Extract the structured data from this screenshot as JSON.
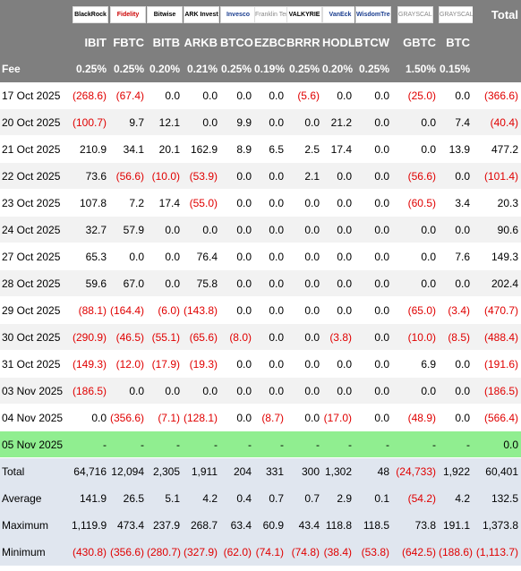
{
  "header": {
    "logos": [
      "BlackRock",
      "Fidelity",
      "Bitwise",
      "ARK Invest",
      "Invesco",
      "Franklin Templeton",
      "VALKYRIE",
      "VanEck",
      "WisdomTree",
      "GRAYSCALE",
      "GRAYSCALE"
    ],
    "total_label": "Total",
    "tickers": [
      "IBIT",
      "FBTC",
      "BITB",
      "ARKB",
      "BTCO",
      "EZBC",
      "BRRR",
      "HODL",
      "BTCW",
      "GBTC",
      "BTC"
    ]
  },
  "fee": {
    "label": "Fee",
    "values": [
      "0.25%",
      "0.25%",
      "0.20%",
      "0.21%",
      "0.25%",
      "0.19%",
      "0.25%",
      "0.20%",
      "0.25%",
      "1.50%",
      "0.15%"
    ]
  },
  "rows": [
    {
      "date": "17 Oct 2025",
      "cells": [
        "(268.6)",
        "(67.4)",
        "0.0",
        "0.0",
        "0.0",
        "0.0",
        "(5.6)",
        "0.0",
        "0.0",
        "(25.0)",
        "0.0",
        "(366.6)"
      ]
    },
    {
      "date": "20 Oct 2025",
      "cells": [
        "(100.7)",
        "9.7",
        "12.1",
        "0.0",
        "9.9",
        "0.0",
        "0.0",
        "21.2",
        "0.0",
        "0.0",
        "7.4",
        "(40.4)"
      ]
    },
    {
      "date": "21 Oct 2025",
      "cells": [
        "210.9",
        "34.1",
        "20.1",
        "162.9",
        "8.9",
        "6.5",
        "2.5",
        "17.4",
        "0.0",
        "0.0",
        "13.9",
        "477.2"
      ]
    },
    {
      "date": "22 Oct 2025",
      "cells": [
        "73.6",
        "(56.6)",
        "(10.0)",
        "(53.9)",
        "0.0",
        "0.0",
        "2.1",
        "0.0",
        "0.0",
        "(56.6)",
        "0.0",
        "(101.4)"
      ]
    },
    {
      "date": "23 Oct 2025",
      "cells": [
        "107.8",
        "7.2",
        "17.4",
        "(55.0)",
        "0.0",
        "0.0",
        "0.0",
        "0.0",
        "0.0",
        "(60.5)",
        "3.4",
        "20.3"
      ]
    },
    {
      "date": "24 Oct 2025",
      "cells": [
        "32.7",
        "57.9",
        "0.0",
        "0.0",
        "0.0",
        "0.0",
        "0.0",
        "0.0",
        "0.0",
        "0.0",
        "0.0",
        "90.6"
      ]
    },
    {
      "date": "27 Oct 2025",
      "cells": [
        "65.3",
        "0.0",
        "0.0",
        "76.4",
        "0.0",
        "0.0",
        "0.0",
        "0.0",
        "0.0",
        "0.0",
        "7.6",
        "149.3"
      ]
    },
    {
      "date": "28 Oct 2025",
      "cells": [
        "59.6",
        "67.0",
        "0.0",
        "75.8",
        "0.0",
        "0.0",
        "0.0",
        "0.0",
        "0.0",
        "0.0",
        "0.0",
        "202.4"
      ]
    },
    {
      "date": "29 Oct 2025",
      "cells": [
        "(88.1)",
        "(164.4)",
        "(6.0)",
        "(143.8)",
        "0.0",
        "0.0",
        "0.0",
        "0.0",
        "0.0",
        "(65.0)",
        "(3.4)",
        "(470.7)"
      ]
    },
    {
      "date": "30 Oct 2025",
      "cells": [
        "(290.9)",
        "(46.5)",
        "(55.1)",
        "(65.6)",
        "(8.0)",
        "0.0",
        "0.0",
        "(3.8)",
        "0.0",
        "(10.0)",
        "(8.5)",
        "(488.4)"
      ]
    },
    {
      "date": "31 Oct 2025",
      "cells": [
        "(149.3)",
        "(12.0)",
        "(17.9)",
        "(19.3)",
        "0.0",
        "0.0",
        "0.0",
        "0.0",
        "0.0",
        "6.9",
        "0.0",
        "(191.6)"
      ]
    },
    {
      "date": "03 Nov 2025",
      "cells": [
        "(186.5)",
        "0.0",
        "0.0",
        "0.0",
        "0.0",
        "0.0",
        "0.0",
        "0.0",
        "0.0",
        "0.0",
        "0.0",
        "(186.5)"
      ]
    },
    {
      "date": "04 Nov 2025",
      "cells": [
        "0.0",
        "(356.6)",
        "(7.1)",
        "(128.1)",
        "0.0",
        "(8.7)",
        "0.0",
        "(17.0)",
        "0.0",
        "(48.9)",
        "0.0",
        "(566.4)"
      ]
    },
    {
      "date": "05 Nov 2025",
      "cells": [
        "-",
        "-",
        "-",
        "-",
        "-",
        "-",
        "-",
        "-",
        "-",
        "-",
        "-",
        "0.0"
      ]
    }
  ],
  "summary": [
    {
      "label": "Total",
      "cells": [
        "64,716",
        "12,094",
        "2,305",
        "1,911",
        "204",
        "331",
        "300",
        "1,302",
        "48",
        "(24,733)",
        "1,922",
        "60,401"
      ]
    },
    {
      "label": "Average",
      "cells": [
        "141.9",
        "26.5",
        "5.1",
        "4.2",
        "0.4",
        "0.7",
        "0.7",
        "2.9",
        "0.1",
        "(54.2)",
        "4.2",
        "132.5"
      ]
    },
    {
      "label": "Maximum",
      "cells": [
        "1,119.9",
        "473.4",
        "237.9",
        "268.7",
        "63.4",
        "60.9",
        "43.4",
        "118.8",
        "118.5",
        "73.8",
        "191.1",
        "1,373.8"
      ]
    },
    {
      "label": "Minimum",
      "cells": [
        "(430.8)",
        "(356.6)",
        "(280.7)",
        "(327.9)",
        "(62.0)",
        "(74.1)",
        "(74.8)",
        "(38.4)",
        "(53.8)",
        "(642.5)",
        "(188.6)",
        "(1,113.7)"
      ]
    }
  ],
  "colors": {
    "header_bg": "#7f7f7f",
    "negative": "#e00000",
    "highlight_row": "#90ee90",
    "summary_bg": "#e0e6ef"
  }
}
